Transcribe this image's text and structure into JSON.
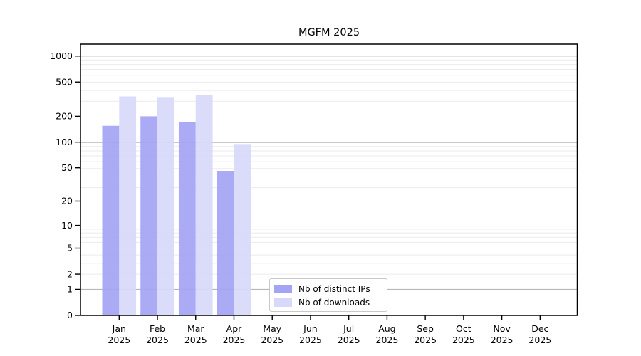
{
  "title": "MGFM 2025",
  "chart_data": {
    "type": "bar",
    "title": "MGFM 2025",
    "categories": [
      "Jan",
      "Feb",
      "Mar",
      "Apr",
      "May",
      "Jun",
      "Jul",
      "Aug",
      "Sep",
      "Oct",
      "Nov",
      "Dec"
    ],
    "category_year": "2025",
    "series": [
      {
        "name": "Nb of distinct IPs",
        "color": "#a4a4f4",
        "values": [
          155,
          200,
          172,
          46,
          null,
          null,
          null,
          null,
          null,
          null,
          null,
          null
        ]
      },
      {
        "name": "Nb of downloads",
        "color": "#d8d8fa",
        "values": [
          340,
          335,
          356,
          95,
          null,
          null,
          null,
          null,
          null,
          null,
          null,
          null
        ]
      }
    ],
    "yscale": "log1p",
    "yticks": [
      0,
      1,
      2,
      5,
      10,
      20,
      50,
      100,
      200,
      500,
      1000
    ],
    "ylim": [
      0,
      1370
    ],
    "grid": "horizontal",
    "grid_major_color": "#b7b7b7",
    "grid_minor_color": "#ebebeb",
    "axis_color": "#000000",
    "legend_position": "lower-center-inside",
    "plot_bg": "#ffffff"
  }
}
